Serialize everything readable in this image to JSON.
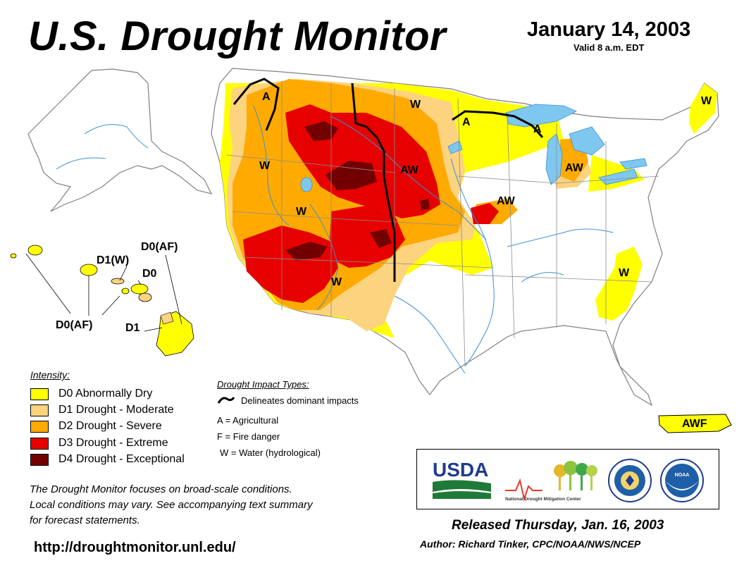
{
  "header": {
    "title": "U.S. Drought Monitor",
    "date": "January 14, 2003",
    "valid": "Valid 8 a.m. EDT"
  },
  "colors": {
    "D0": "#ffff00",
    "D1": "#fcd37f",
    "D2": "#ffaa00",
    "D3": "#e60000",
    "D4": "#730000",
    "water": "#7ec8f0",
    "rivers": "#3a8fd8",
    "borders": "#808080"
  },
  "map": {
    "impact_labels": [
      "A",
      "W",
      "W",
      "W",
      "W",
      "AW",
      "AW",
      "AW",
      "A",
      "A",
      "W",
      "W",
      "AWF"
    ],
    "hawaii_labels": [
      "D0(AF)",
      "D1(W)",
      "D0",
      "D0(AF)",
      "D1"
    ]
  },
  "legend": {
    "title": "Intensity:",
    "items": [
      {
        "code": "D0",
        "label": "D0 Abnormally Dry"
      },
      {
        "code": "D1",
        "label": "D1 Drought - Moderate"
      },
      {
        "code": "D2",
        "label": "D2 Drought - Severe"
      },
      {
        "code": "D3",
        "label": "D3 Drought - Extreme"
      },
      {
        "code": "D4",
        "label": "D4 Drought - Exceptional"
      }
    ]
  },
  "impacts": {
    "title": "Drought Impact Types:",
    "line_label": "Delineates dominant impacts",
    "types": [
      "A = Agricultural",
      "F = Fire danger",
      "W = Water (hydrological)"
    ]
  },
  "logos": {
    "usda": "USDA",
    "ndmc": "National Drought Mitigation Center",
    "noaa": "NOAA"
  },
  "footer": {
    "note_lines": [
      "The Drought Monitor focuses on broad-scale conditions.",
      "Local conditions may vary. See accompanying text summary",
      "for forecast statements."
    ],
    "url": "http://droughtmonitor.unl.edu/",
    "released": "Released Thursday, Jan. 16, 2003",
    "author": "Author: Richard Tinker, CPC/NOAA/NWS/NCEP"
  }
}
